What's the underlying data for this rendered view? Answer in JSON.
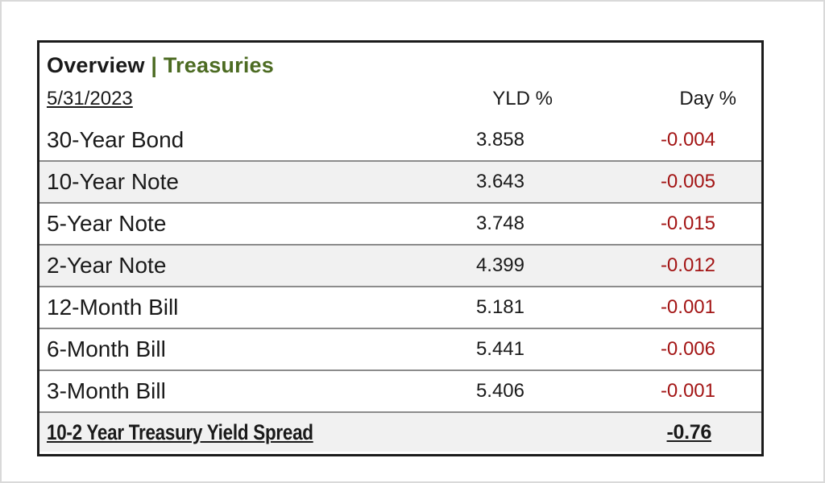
{
  "panel": {
    "title": {
      "primary": "Overview",
      "separator": "|",
      "secondary": "Treasuries"
    },
    "date": "5/31/2023",
    "columns": {
      "yld": "YLD %",
      "day": "Day %"
    },
    "rows": [
      {
        "label": "30-Year Bond",
        "yld": "3.858",
        "day": "-0.004",
        "shaded": false
      },
      {
        "label": "10-Year Note",
        "yld": "3.643",
        "day": "-0.005",
        "shaded": true
      },
      {
        "label": "5-Year Note",
        "yld": "3.748",
        "day": "-0.015",
        "shaded": false
      },
      {
        "label": "2-Year Note",
        "yld": "4.399",
        "day": "-0.012",
        "shaded": true
      },
      {
        "label": "12-Month Bill",
        "yld": "5.181",
        "day": "-0.001",
        "shaded": false
      },
      {
        "label": "6-Month Bill",
        "yld": "5.441",
        "day": "-0.006",
        "shaded": false
      },
      {
        "label": "3-Month Bill",
        "yld": "5.406",
        "day": "-0.001",
        "shaded": false
      }
    ],
    "footer": {
      "label": "10-2 Year Treasury Yield Spread",
      "value": "-0.76"
    }
  },
  "colors": {
    "accent_green": "#4c6b22",
    "negative_red": "#a31515",
    "shaded_row": "#f1f1f1",
    "row_separator": "#8c8c8c",
    "panel_border": "#1b1b1b"
  }
}
